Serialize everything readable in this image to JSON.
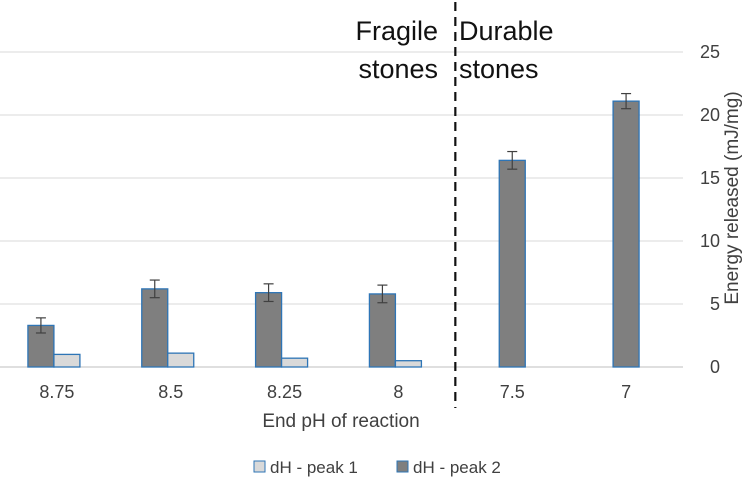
{
  "chart_data": {
    "type": "bar",
    "title": "",
    "xlabel": "End pH of reaction",
    "ylabel": "Energy released (mJ/mg)",
    "categories": [
      "8.75",
      "8.5",
      "8.25",
      "8",
      "7.5",
      "7"
    ],
    "ylim": [
      0,
      25
    ],
    "yticks": [
      "0",
      "5",
      "10",
      "15",
      "20",
      "25"
    ],
    "y_axis_side": "right",
    "grid": true,
    "series": [
      {
        "name": "dH - peak 2",
        "color": "#7f7f7f",
        "edge_color": "#2e75b6",
        "values": [
          3.3,
          6.2,
          5.9,
          5.8,
          16.4,
          21.1
        ],
        "error": [
          0.6,
          0.7,
          0.7,
          0.7,
          0.7,
          0.6
        ]
      },
      {
        "name": "dH - peak 1",
        "color": "#d9d9d9",
        "edge_color": "#2e75b6",
        "values": [
          1.0,
          1.1,
          0.7,
          0.5,
          null,
          null
        ],
        "error": [
          0,
          0,
          0,
          0,
          0,
          0
        ]
      }
    ],
    "legend": {
      "placement": "bottom-center",
      "order": [
        "dH - peak 1",
        "dH - peak 2"
      ]
    },
    "annotations": {
      "left_label": [
        "Fragile",
        "stones"
      ],
      "right_label": [
        "Durable",
        "stones"
      ],
      "divider_between_categories": [
        "8",
        "7.5"
      ],
      "divider_style": "dashed"
    }
  }
}
